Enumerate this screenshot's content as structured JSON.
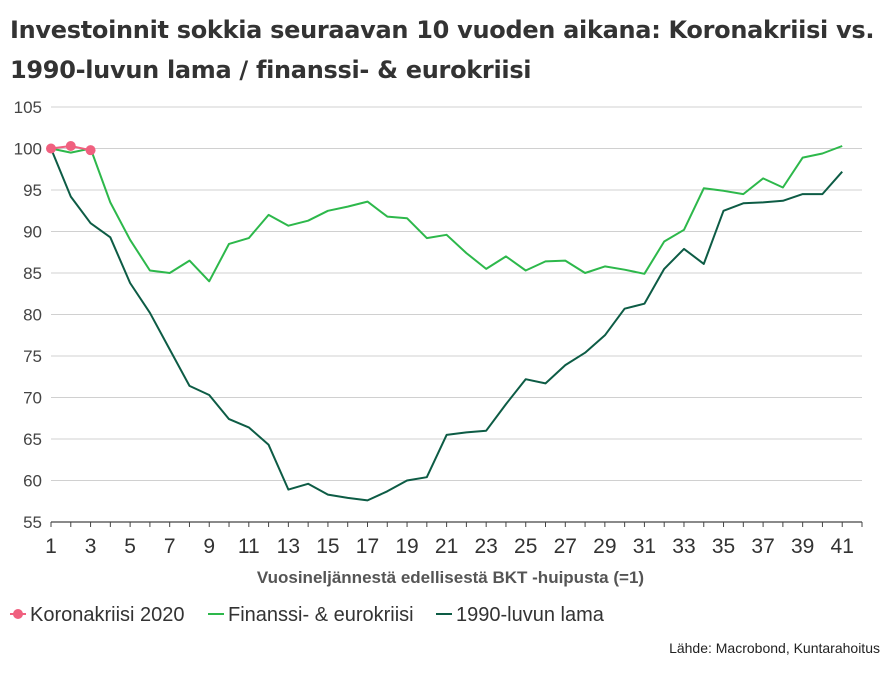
{
  "title": "Investoinnit sokkia seuraavan 10 vuoden aikana: Koronakriisi vs. 1990-luvun lama / finanssi- & eurokriisi",
  "source": "Lähde: Macrobond, Kuntarahoitus",
  "colors": {
    "korona": "#f0607f",
    "finanssi": "#2db84b",
    "lama": "#0d5c45",
    "grid": "#d0d0d0",
    "axis": "#444444"
  },
  "chart_data": {
    "type": "line",
    "title": "Investoinnit sokkia seuraavan 10 vuoden aikana: Koronakriisi vs. 1990-luvun lama / finanssi- & eurokriisi",
    "xlabel": "Vuosineljännestä edellisestä BKT -huipusta (=1)",
    "ylabel": "",
    "xlim": [
      1,
      42
    ],
    "ylim": [
      55,
      105
    ],
    "x_ticks": [
      1,
      3,
      5,
      7,
      9,
      11,
      13,
      15,
      17,
      19,
      21,
      23,
      25,
      27,
      29,
      31,
      33,
      35,
      37,
      39,
      41
    ],
    "y_ticks": [
      55,
      60,
      65,
      70,
      75,
      80,
      85,
      90,
      95,
      100,
      105
    ],
    "grid": true,
    "legend_position": "bottom-left",
    "series": [
      {
        "name": "Koronakriisi 2020",
        "key": "korona",
        "markers": true,
        "x": [
          1,
          2,
          3
        ],
        "values": [
          100,
          100.3,
          99.8
        ]
      },
      {
        "name": "Finanssi- & eurokriisi",
        "key": "finanssi",
        "markers": false,
        "x": [
          1,
          2,
          3,
          4,
          5,
          6,
          7,
          8,
          9,
          10,
          11,
          12,
          13,
          14,
          15,
          16,
          17,
          18,
          19,
          20,
          21,
          22,
          23,
          24,
          25,
          26,
          27,
          28,
          29,
          30,
          31,
          32,
          33,
          34,
          35,
          36,
          37,
          38,
          39,
          40,
          41
        ],
        "values": [
          100,
          99.5,
          100,
          93.5,
          89,
          85.3,
          85,
          86.5,
          84,
          88.5,
          89.2,
          92,
          90.7,
          91.3,
          92.5,
          93,
          93.6,
          91.8,
          91.6,
          89.2,
          89.6,
          87.4,
          85.5,
          87,
          85.3,
          86.4,
          86.5,
          85,
          85.8,
          85.4,
          84.9,
          88.8,
          90.2,
          95.2,
          94.9,
          94.5,
          96.4,
          95.3,
          98.9,
          99.4,
          100.3
        ]
      },
      {
        "name": "1990-luvun lama",
        "key": "lama",
        "markers": false,
        "x": [
          1,
          2,
          3,
          4,
          5,
          6,
          7,
          8,
          9,
          10,
          11,
          12,
          13,
          14,
          15,
          16,
          17,
          18,
          19,
          20,
          21,
          22,
          23,
          24,
          25,
          26,
          27,
          28,
          29,
          30,
          31,
          32,
          33,
          34,
          35,
          36,
          37,
          38,
          39,
          40,
          41
        ],
        "values": [
          100,
          94.2,
          91,
          89.3,
          83.8,
          80.2,
          75.8,
          71.4,
          70.3,
          67.4,
          66.4,
          64.3,
          58.9,
          59.6,
          58.3,
          57.9,
          57.6,
          58.7,
          60,
          60.4,
          65.5,
          65.8,
          66,
          69.2,
          72.2,
          71.7,
          73.9,
          75.4,
          77.5,
          80.7,
          81.3,
          85.5,
          87.9,
          86.1,
          92.5,
          93.4,
          93.5,
          93.7,
          94.5,
          94.5,
          97.2
        ]
      }
    ]
  }
}
